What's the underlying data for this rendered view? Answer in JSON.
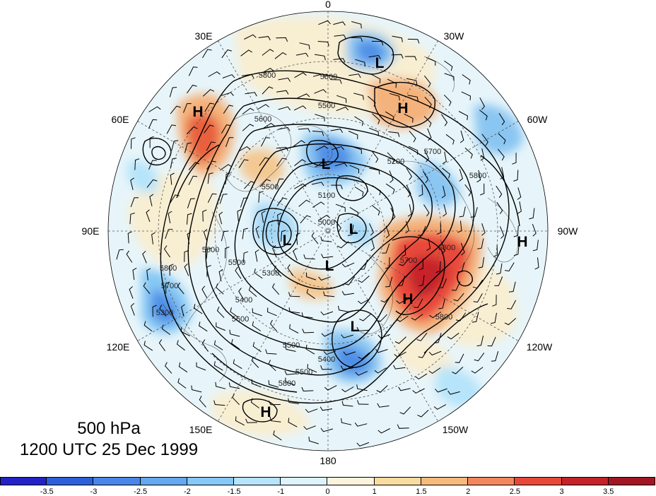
{
  "title": {
    "level": "500 hPa",
    "time": "1200 UTC 25 Dec 1999"
  },
  "longitude_labels": [
    "0",
    "30W",
    "60W",
    "90W",
    "120W",
    "150W",
    "180",
    "150E",
    "120E",
    "90E",
    "60E",
    "30E"
  ],
  "contour_labels": [
    "5800",
    "5800",
    "5500",
    "5600",
    "5700",
    "5200",
    "5800",
    "5500",
    "5100",
    "5000",
    "5800",
    "5700",
    "5600",
    "5800",
    "5300",
    "5500",
    "5400",
    "5400",
    "5300",
    "5500",
    "5500",
    "5800",
    "5700",
    "5800",
    "5600"
  ],
  "pressure_centers": [
    "L",
    "H",
    "H",
    "L",
    "L",
    "L",
    "L",
    "H",
    "H",
    "L",
    "H"
  ],
  "colorbar": {
    "ticks": [
      "-3.5",
      "-3",
      "-2.5",
      "-2",
      "-1.5",
      "-1",
      "0",
      "1",
      "1.5",
      "2",
      "2.5",
      "3",
      "3.5"
    ],
    "colors": [
      "#2222c8",
      "#2c5fd8",
      "#4a86e8",
      "#64a8f0",
      "#86c8f6",
      "#b6e4fa",
      "#ddf3fb",
      "#fbf3dc",
      "#f9dca0",
      "#f6ba7c",
      "#f2875e",
      "#e6483a",
      "#c42228",
      "#a11622"
    ]
  }
}
